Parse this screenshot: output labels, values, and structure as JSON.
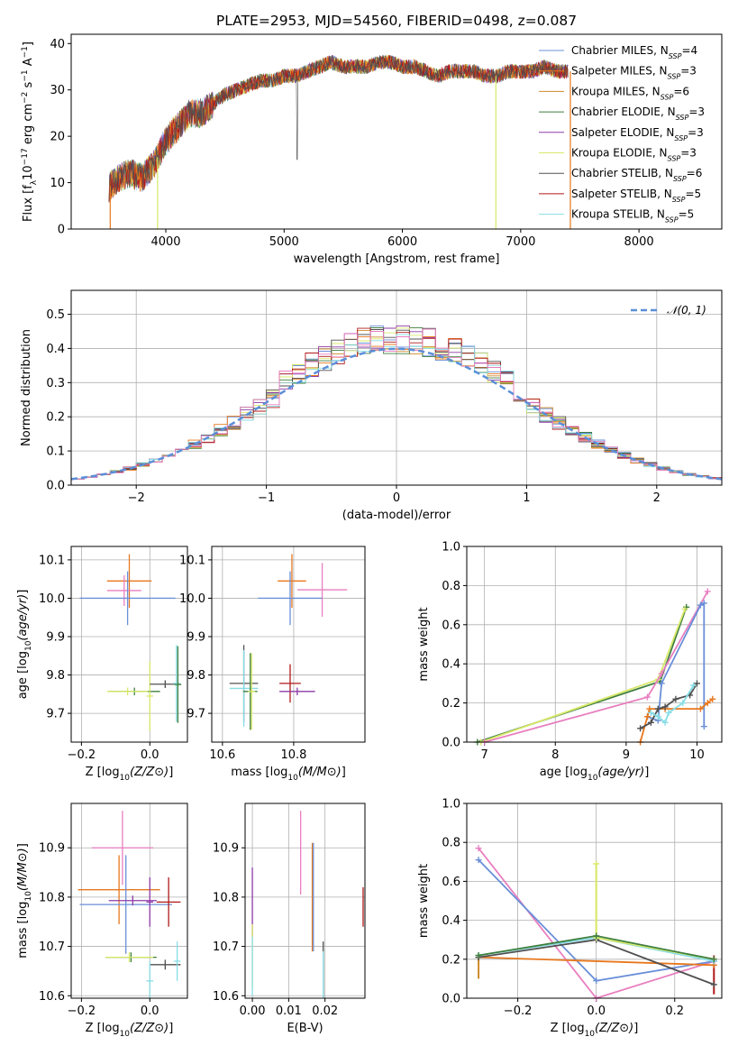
{
  "title": "PLATE=2953, MJD=54560, FIBERID=0498, z=0.087",
  "colors": {
    "Chabrier MILES": "#6a8fd8",
    "Salpeter MILES": "#e8781e",
    "Kroupa MILES": "#d08a2a",
    "Chabrier ELODIE": "#3f7f3f",
    "Salpeter ELODIE": "#8e3aa8",
    "Kroupa ELODIE": "#d9e86a",
    "Chabrier STELIB": "#505050",
    "Salpeter STELIB": "#b01818",
    "Kroupa STELIB": "#88dde6",
    "Pink": "#e87fc0",
    "Gauss": "#5b8fd8"
  },
  "chart_data": [
    {
      "id": "spectrum",
      "type": "line",
      "xlabel": "wavelength [Angstrom, rest frame]",
      "ylabel": "Flux [f_λ10^-17 erg cm^-2 s^-1 A^-1]",
      "xlim": [
        3200,
        8700
      ],
      "ylim": [
        0,
        42
      ],
      "xticks": [
        "4000",
        "5000",
        "6000",
        "7000",
        "8000"
      ],
      "yticks": [
        "0",
        "10",
        "20",
        "30",
        "40"
      ],
      "grid": false,
      "legend_position": "top-right",
      "legend": [
        {
          "name": "Chabrier MILES",
          "n": "4",
          "color": "#6a8fd8"
        },
        {
          "name": "Salpeter MILES",
          "n": "3",
          "color": "#e8781e"
        },
        {
          "name": "Kroupa MILES",
          "n": "6",
          "color": "#d08a2a"
        },
        {
          "name": "Chabrier ELODIE",
          "n": "3",
          "color": "#3f7f3f"
        },
        {
          "name": "Salpeter ELODIE",
          "n": "3",
          "color": "#8e3aa8"
        },
        {
          "name": "Kroupa ELODIE",
          "n": "3",
          "color": "#d9e86a"
        },
        {
          "name": "Chabrier STELIB",
          "n": "6",
          "color": "#505050"
        },
        {
          "name": "Salpeter STELIB",
          "n": "5",
          "color": "#b01818"
        },
        {
          "name": "Kroupa STELIB",
          "n": "5",
          "color": "#88dde6"
        }
      ],
      "n_prefix": "N",
      "n_sub": "SSP",
      "continuum": {
        "x": [
          3520,
          3600,
          3700,
          3800,
          3900,
          4000,
          4100,
          4200,
          4300,
          4400,
          4500,
          4600,
          4700,
          4800,
          4900,
          5000,
          5100,
          5200,
          5300,
          5400,
          5500,
          5600,
          5700,
          5800,
          5900,
          6000,
          6100,
          6200,
          6300,
          6400,
          6500,
          6600,
          6700,
          6800,
          6900,
          7000,
          7100,
          7200,
          7300,
          7400
        ],
        "y": [
          9,
          11,
          12,
          11,
          14,
          19,
          22,
          25,
          25,
          27,
          29,
          30,
          31,
          32,
          32,
          33,
          33,
          34,
          35,
          36,
          35,
          35,
          35,
          36,
          36,
          35,
          35,
          34,
          33,
          34,
          34,
          34,
          33,
          33,
          34,
          34,
          34,
          35,
          34,
          34
        ]
      },
      "dips": [
        {
          "x": 3530,
          "y": 0,
          "color": "#e8781e"
        },
        {
          "x": 3930,
          "y": 0,
          "color": "#d9e86a"
        },
        {
          "x": 6790,
          "y": 0,
          "color": "#d9e86a"
        },
        {
          "x": 7420,
          "y": 0,
          "color": "#e8781e"
        }
      ]
    },
    {
      "id": "residuals",
      "type": "line",
      "xlabel": "(data-model)/error",
      "ylabel": "Normed distribution",
      "xlim": [
        -2.5,
        2.5
      ],
      "ylim": [
        0,
        0.57
      ],
      "xticks": [
        {
          "v": -2,
          "t": "−2"
        },
        {
          "v": -1,
          "t": "−1"
        },
        {
          "v": 0,
          "t": "0"
        },
        {
          "v": 1,
          "t": "1"
        },
        {
          "v": 2,
          "t": "2"
        }
      ],
      "yticks": [
        {
          "v": 0,
          "t": "0.0"
        },
        {
          "v": 0.1,
          "t": "0.1"
        },
        {
          "v": 0.2,
          "t": "0.2"
        },
        {
          "v": 0.3,
          "t": "0.3"
        },
        {
          "v": 0.4,
          "t": "0.4"
        },
        {
          "v": 0.5,
          "t": "0.5"
        }
      ],
      "grid": true,
      "legend_position": "top-right",
      "gauss_label": "𝒩(0, 1)",
      "bin_width": 0.1
    },
    {
      "id": "z-age",
      "type": "scatter",
      "xlabel": "Z [log10(Z/Z⊙)]",
      "ylabel": "age  [log10(age/yr)]",
      "xlim": [
        -0.23,
        0.11
      ],
      "ylim": [
        9.625,
        10.135
      ],
      "xticks": [
        {
          "v": -0.2,
          "t": "−0.2"
        },
        {
          "v": 0,
          "t": "0.0"
        }
      ],
      "yticks": [
        {
          "v": 9.7,
          "t": "9.7"
        },
        {
          "v": 9.8,
          "t": "9.8"
        },
        {
          "v": 9.9,
          "t": "9.9"
        },
        {
          "v": 10,
          "t": "10.0"
        },
        {
          "v": 10.1,
          "t": "10.1"
        }
      ],
      "grid": true,
      "points": [
        {
          "x": -0.06,
          "y": 10.045,
          "xerr": 0.065,
          "yerr": 0.07,
          "color": "#e8781e"
        },
        {
          "x": -0.075,
          "y": 10.02,
          "xerr": 0.05,
          "yerr": 0.04,
          "color": "#e87fc0"
        },
        {
          "x": -0.065,
          "y": 10.0,
          "xerr": 0.14,
          "yerr": 0.07,
          "color": "#6a8fd8"
        },
        {
          "x": -0.045,
          "y": 9.757,
          "xerr": 0.075,
          "yerr": 0.01,
          "color": "#3f7f3f"
        },
        {
          "x": -0.065,
          "y": 9.757,
          "xerr": 0.06,
          "yerr": 0.01,
          "color": "#d9e86a"
        },
        {
          "x": 0.0,
          "y": 9.745,
          "xerr": 0.01,
          "yerr": 0.09,
          "color": "#d9e86a"
        },
        {
          "x": 0.045,
          "y": 9.776,
          "xerr": 0.045,
          "yerr": 0.01,
          "color": "#505050"
        },
        {
          "x": 0.078,
          "y": 9.778,
          "xerr": 0.01,
          "yerr": 0.1,
          "color": "#88dde6"
        },
        {
          "x": 0.082,
          "y": 9.775,
          "xerr": 0.01,
          "yerr": 0.1,
          "color": "#3f7f3f"
        }
      ]
    },
    {
      "id": "mass-age",
      "type": "scatter",
      "xlabel": "mass [log10(M/M⊙)]",
      "ylabel": "",
      "xlim": [
        10.57,
        11.0
      ],
      "ylim": [
        9.625,
        10.135
      ],
      "xticks": [
        {
          "v": 10.6,
          "t": "10.6"
        },
        {
          "v": 10.8,
          "t": "10.8"
        }
      ],
      "yticks": [
        {
          "v": 9.7,
          "t": "9.7"
        },
        {
          "v": 9.8,
          "t": "9.8"
        },
        {
          "v": 9.9,
          "t": "9.9"
        },
        {
          "v": 10,
          "t": "10.0"
        },
        {
          "v": 10.1,
          "t": "10.1"
        }
      ],
      "grid": true,
      "points": [
        {
          "x": 10.795,
          "y": 10.045,
          "xerr": 0.04,
          "yerr": 0.07,
          "color": "#e8781e"
        },
        {
          "x": 10.88,
          "y": 10.022,
          "xerr": 0.07,
          "yerr": 0.07,
          "color": "#e87fc0"
        },
        {
          "x": 10.79,
          "y": 10.0,
          "xerr": 0.09,
          "yerr": 0.07,
          "color": "#6a8fd8"
        },
        {
          "x": 10.66,
          "y": 9.778,
          "xerr": 0.04,
          "yerr": 0.1,
          "color": "#505050"
        },
        {
          "x": 10.66,
          "y": 9.765,
          "xerr": 0.04,
          "yerr": 0.1,
          "color": "#88dde6"
        },
        {
          "x": 10.678,
          "y": 9.757,
          "xerr": 0.02,
          "yerr": 0.1,
          "color": "#3f7f3f"
        },
        {
          "x": 10.682,
          "y": 9.757,
          "xerr": 0.01,
          "yerr": 0.1,
          "color": "#d9e86a"
        },
        {
          "x": 10.79,
          "y": 9.778,
          "xerr": 0.03,
          "yerr": 0.05,
          "color": "#b01818"
        },
        {
          "x": 10.81,
          "y": 9.757,
          "xerr": 0.05,
          "yerr": 0.01,
          "color": "#8e3aa8"
        }
      ]
    },
    {
      "id": "age-mw",
      "type": "line",
      "xlabel": "age  [log10(age/yr)]",
      "ylabel": "mass weight",
      "xlim": [
        6.75,
        10.35
      ],
      "ylim": [
        0,
        1.0
      ],
      "xticks": [
        {
          "v": 7,
          "t": "7"
        },
        {
          "v": 8,
          "t": "8"
        },
        {
          "v": 9,
          "t": "9"
        },
        {
          "v": 10,
          "t": "10"
        }
      ],
      "yticks": [
        {
          "v": 0,
          "t": "0.0"
        },
        {
          "v": 0.2,
          "t": "0.2"
        },
        {
          "v": 0.4,
          "t": "0.4"
        },
        {
          "v": 0.6,
          "t": "0.6"
        },
        {
          "v": 0.8,
          "t": "0.8"
        },
        {
          "v": 1.0,
          "t": "1.0"
        }
      ],
      "grid": true,
      "series": [
        {
          "color": "#3f7f3f",
          "x": [
            6.9,
            9.48,
            9.85
          ],
          "y": [
            0.0,
            0.31,
            0.69
          ]
        },
        {
          "color": "#d9e86a",
          "x": [
            6.95,
            9.45,
            9.83
          ],
          "y": [
            0.0,
            0.32,
            0.68
          ]
        },
        {
          "color": "#e87fc0",
          "x": [
            7.0,
            9.3,
            9.5,
            10.15
          ],
          "y": [
            0.0,
            0.23,
            0.35,
            0.77
          ]
        },
        {
          "color": "#6a8fd8",
          "x": [
            9.3,
            9.45,
            9.5,
            10.05,
            10.1,
            10.1
          ],
          "y": [
            0.13,
            0.11,
            0.3,
            0.7,
            0.71,
            0.08
          ]
        },
        {
          "color": "#e8781e",
          "x": [
            9.2,
            9.3,
            9.33,
            9.55,
            10.05,
            10.15,
            10.22
          ],
          "y": [
            0.0,
            0.13,
            0.17,
            0.17,
            0.17,
            0.2,
            0.22
          ]
        },
        {
          "color": "#505050",
          "x": [
            9.2,
            9.35,
            9.45,
            9.55,
            9.7,
            9.9,
            10.0
          ],
          "y": [
            0.07,
            0.1,
            0.17,
            0.18,
            0.22,
            0.24,
            0.3
          ]
        },
        {
          "color": "#88dde6",
          "x": [
            9.35,
            9.45,
            9.55,
            9.6,
            9.8,
            9.95
          ],
          "y": [
            0.15,
            0.13,
            0.1,
            0.15,
            0.2,
            0.29
          ]
        }
      ]
    },
    {
      "id": "z-mass",
      "type": "scatter",
      "xlabel": "Z [log10(Z/Z⊙)]",
      "ylabel": "mass [log10(M/M⊙)]",
      "xlim": [
        -0.23,
        0.11
      ],
      "ylim": [
        10.595,
        10.99
      ],
      "xticks": [
        {
          "v": -0.2,
          "t": "−0.2"
        },
        {
          "v": 0,
          "t": "0.0"
        }
      ],
      "yticks": [
        {
          "v": 10.6,
          "t": "10.6"
        },
        {
          "v": 10.7,
          "t": "10.7"
        },
        {
          "v": 10.8,
          "t": "10.8"
        },
        {
          "v": 10.9,
          "t": "10.9"
        }
      ],
      "grid": true,
      "points": [
        {
          "x": -0.08,
          "y": 10.9,
          "xerr": 0.09,
          "yerr": 0.075,
          "color": "#e87fc0"
        },
        {
          "x": -0.09,
          "y": 10.815,
          "xerr": 0.12,
          "yerr": 0.07,
          "color": "#e8781e"
        },
        {
          "x": -0.07,
          "y": 10.785,
          "xerr": 0.135,
          "yerr": 0.1,
          "color": "#6a8fd8"
        },
        {
          "x": -0.05,
          "y": 10.793,
          "xerr": 0.07,
          "yerr": 0.01,
          "color": "#8e3aa8"
        },
        {
          "x": 0.0,
          "y": 10.79,
          "xerr": 0.01,
          "yerr": 0.05,
          "color": "#8e3aa8"
        },
        {
          "x": 0.055,
          "y": 10.79,
          "xerr": 0.035,
          "yerr": 0.05,
          "color": "#b01818"
        },
        {
          "x": -0.055,
          "y": 10.678,
          "xerr": 0.075,
          "yerr": 0.01,
          "color": "#3f7f3f"
        },
        {
          "x": -0.06,
          "y": 10.678,
          "xerr": 0.07,
          "yerr": 0.01,
          "color": "#d9e86a"
        },
        {
          "x": 0.045,
          "y": 10.663,
          "xerr": 0.045,
          "yerr": 0.01,
          "color": "#505050"
        },
        {
          "x": 0.0,
          "y": 10.63,
          "xerr": 0.01,
          "yerr": 0.04,
          "color": "#88dde6"
        },
        {
          "x": 0.08,
          "y": 10.67,
          "xerr": 0.01,
          "yerr": 0.04,
          "color": "#88dde6"
        }
      ]
    },
    {
      "id": "ebv-mass",
      "type": "scatter",
      "xlabel": "E(B-V)",
      "ylabel": "",
      "xlim": [
        -0.002,
        0.031
      ],
      "ylim": [
        10.595,
        10.99
      ],
      "xticks": [
        {
          "v": 0,
          "t": "0.00"
        },
        {
          "v": 0.01,
          "t": "0.01"
        },
        {
          "v": 0.02,
          "t": "0.02"
        }
      ],
      "yticks": [
        {
          "v": 10.6,
          "t": "10.6"
        },
        {
          "v": 10.7,
          "t": "10.7"
        },
        {
          "v": 10.8,
          "t": "10.8"
        },
        {
          "v": 10.9,
          "t": "10.9"
        }
      ],
      "grid": true,
      "points": [
        {
          "x": 0.0,
          "y": 10.79,
          "yerr": 0.07,
          "color": "#8e3aa8"
        },
        {
          "x": 0.0,
          "y": 10.68,
          "yerr": 0.065,
          "color": "#d9e86a"
        },
        {
          "x": 0.0,
          "y": 10.66,
          "yerr": 0.06,
          "color": "#88dde6"
        },
        {
          "x": 0.0133,
          "y": 10.89,
          "yerr": 0.085,
          "color": "#e87fc0"
        },
        {
          "x": 0.0165,
          "y": 10.8,
          "yerr": 0.11,
          "color": "#e8781e"
        },
        {
          "x": 0.0168,
          "y": 10.8,
          "yerr": 0.11,
          "color": "#6a8fd8"
        },
        {
          "x": 0.0195,
          "y": 10.65,
          "yerr": 0.06,
          "color": "#505050"
        },
        {
          "x": 0.0195,
          "y": 10.64,
          "yerr": 0.05,
          "color": "#88dde6"
        },
        {
          "x": 0.0305,
          "y": 10.78,
          "yerr": 0.04,
          "color": "#b01818"
        }
      ]
    },
    {
      "id": "z-mw",
      "type": "line",
      "xlabel": "Z [log10(Z/Z⊙)]",
      "ylabel": "mass weight",
      "xlim": [
        -0.33,
        0.32
      ],
      "ylim": [
        0,
        1.0
      ],
      "xticks": [
        {
          "v": -0.2,
          "t": "−0.2"
        },
        {
          "v": 0,
          "t": "0.0"
        },
        {
          "v": 0.2,
          "t": "0.2"
        }
      ],
      "yticks": [
        {
          "v": 0,
          "t": "0.0"
        },
        {
          "v": 0.2,
          "t": "0.2"
        },
        {
          "v": 0.4,
          "t": "0.4"
        },
        {
          "v": 0.6,
          "t": "0.6"
        },
        {
          "v": 0.8,
          "t": "0.8"
        },
        {
          "v": 1.0,
          "t": "1.0"
        }
      ],
      "grid": true,
      "series": [
        {
          "color": "#e87fc0",
          "x": [
            -0.3,
            0.0,
            0.3
          ],
          "y": [
            0.77,
            0.0,
            0.19
          ]
        },
        {
          "color": "#6a8fd8",
          "x": [
            -0.3,
            0.0,
            0.3
          ],
          "y": [
            0.71,
            0.09,
            0.19
          ]
        },
        {
          "color": "#e8781e",
          "x": [
            -0.3,
            0.3
          ],
          "y": [
            0.21,
            0.17
          ]
        },
        {
          "color": "#505050",
          "x": [
            -0.3,
            0.0,
            0.3
          ],
          "y": [
            0.21,
            0.3,
            0.07
          ]
        },
        {
          "color": "#88dde6",
          "x": [
            -0.3,
            0.0,
            0.3
          ],
          "y": [
            0.22,
            0.31,
            0.19
          ]
        },
        {
          "color": "#d9e86a",
          "x": [
            0.0,
            0.0,
            0.3
          ],
          "y": [
            0.69,
            0.31,
            0.2
          ]
        },
        {
          "color": "#3f7f3f",
          "x": [
            -0.3,
            0.0,
            0.3
          ],
          "y": [
            0.22,
            0.32,
            0.2
          ]
        }
      ],
      "vlines": [
        {
          "x": -0.3,
          "y0": 0.1,
          "y1": 0.22,
          "color": "#d08a2a"
        },
        {
          "x": 0.0,
          "y0": 0.31,
          "y1": 0.69,
          "color": "#d9e86a"
        },
        {
          "x": 0.3,
          "y0": 0.02,
          "y1": 0.22,
          "color": "#b01818"
        }
      ]
    }
  ]
}
